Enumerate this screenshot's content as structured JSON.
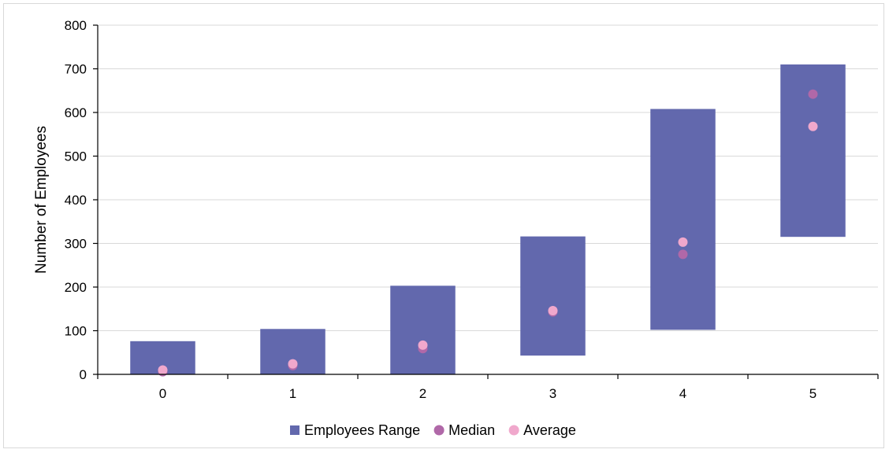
{
  "chart_data": {
    "type": "bar",
    "title": "",
    "xlabel": "",
    "ylabel": "Number of Employees",
    "ylim": [
      0,
      800
    ],
    "yticks": [
      0,
      100,
      200,
      300,
      400,
      500,
      600,
      700,
      800
    ],
    "categories": [
      "0",
      "1",
      "2",
      "3",
      "4",
      "5"
    ],
    "grid": true,
    "legend_position": "bottom",
    "series": [
      {
        "name": "Employees Range",
        "kind": "floating-bar",
        "color": "#6268ad",
        "low": [
          0,
          0,
          0,
          43,
          102,
          315
        ],
        "high": [
          76,
          104,
          203,
          316,
          608,
          710
        ]
      },
      {
        "name": "Median",
        "kind": "marker",
        "color": "#b068a8",
        "values": [
          6,
          20,
          59,
          143,
          275,
          642
        ]
      },
      {
        "name": "Average",
        "kind": "marker",
        "color": "#f0a8cc",
        "values": [
          10,
          24,
          67,
          146,
          303,
          568
        ]
      }
    ]
  }
}
